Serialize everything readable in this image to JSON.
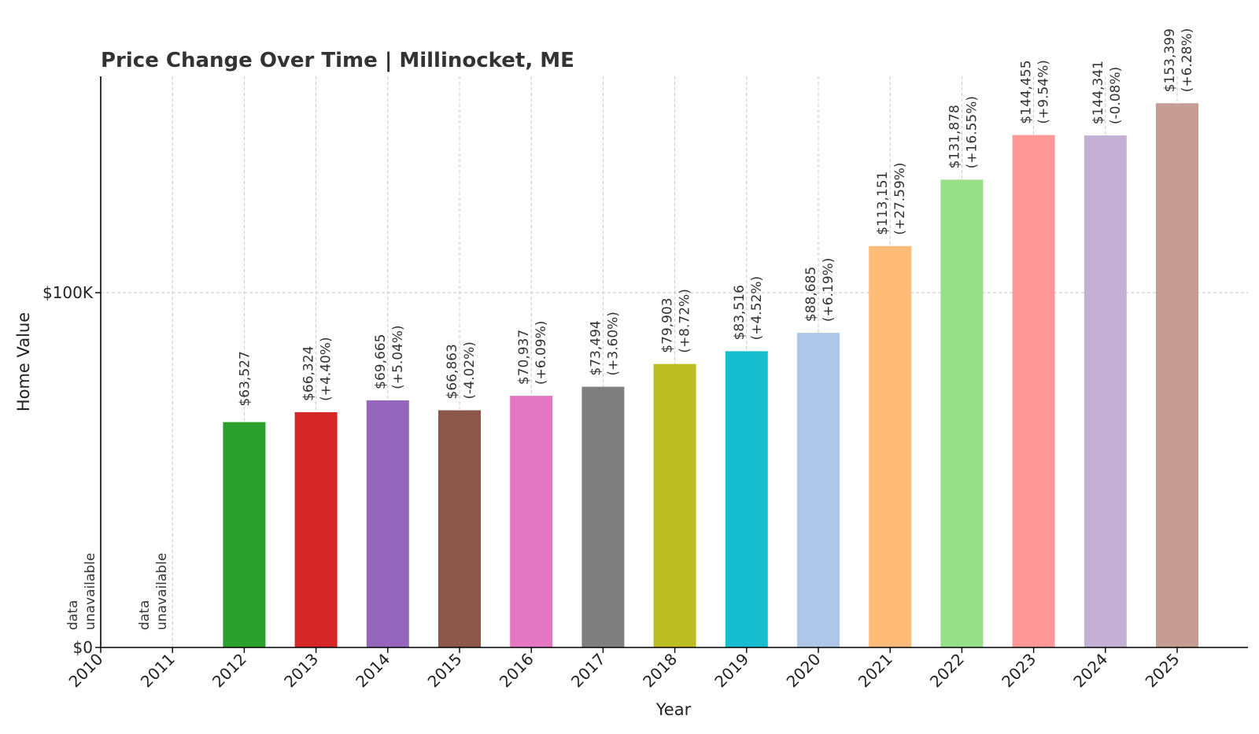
{
  "chart_data": {
    "type": "bar",
    "title": "Price Change Over Time | Millinocket, ME",
    "xlabel": "Year",
    "ylabel": "Home Value",
    "categories": [
      "2010",
      "2011",
      "2012",
      "2013",
      "2014",
      "2015",
      "2016",
      "2017",
      "2018",
      "2019",
      "2020",
      "2021",
      "2022",
      "2023",
      "2024",
      "2025"
    ],
    "values": [
      null,
      null,
      63527,
      66324,
      69665,
      66863,
      70937,
      73494,
      79903,
      83516,
      88685,
      113151,
      131878,
      144455,
      144341,
      153399
    ],
    "value_labels": [
      "",
      "",
      "$63,527",
      "$66,324",
      "$69,665",
      "$66,863",
      "$70,937",
      "$73,494",
      "$79,903",
      "$83,516",
      "$88,685",
      "$113,151",
      "$131,878",
      "$144,455",
      "$144,341",
      "$153,399"
    ],
    "change_labels": [
      "",
      "",
      "",
      "(+4.40%)",
      "(+5.04%)",
      "(-4.02%)",
      "(+6.09%)",
      "(+3.60%)",
      "(+8.72%)",
      "(+4.52%)",
      "(+6.19%)",
      "(+27.59%)",
      "(+16.55%)",
      "(+9.54%)",
      "(-0.08%)",
      "(+6.28%)"
    ],
    "unavailable_label": [
      "data",
      "unavailable"
    ],
    "colors": [
      "#1f77b4",
      "#ff7f0e",
      "#2ca02c",
      "#d62728",
      "#9467bd",
      "#8c564b",
      "#e377c2",
      "#7f7f7f",
      "#bcbd22",
      "#17becf",
      "#aec7e8",
      "#ffbb78",
      "#98df8a",
      "#ff9896",
      "#c5b0d5",
      "#c49c94"
    ],
    "yticks": [
      0,
      100000
    ],
    "ytick_labels": [
      "$0",
      "$100K"
    ],
    "ylim": [
      0,
      161000
    ],
    "grid": true
  }
}
